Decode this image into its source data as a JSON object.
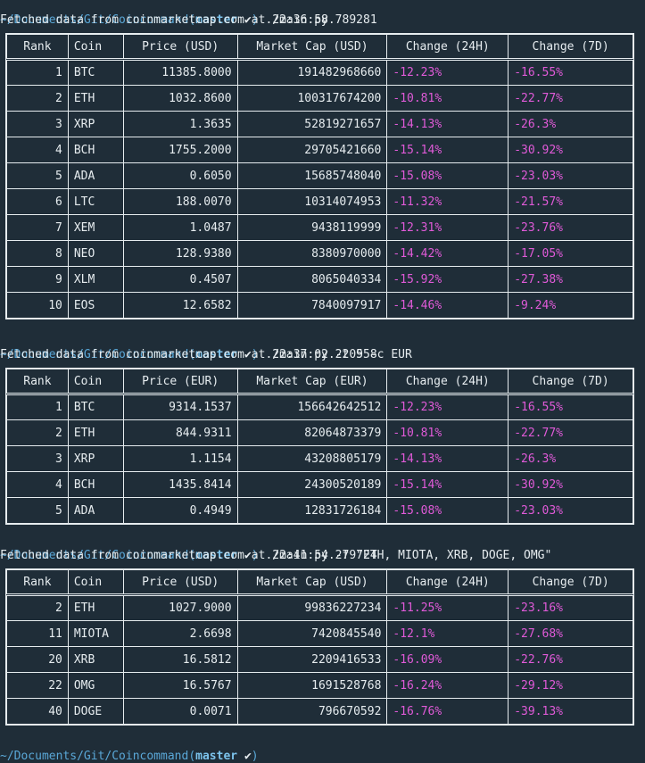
{
  "terminal": {
    "colors": {
      "background": "#1f2d38",
      "path": "#5aa8d8",
      "branch": "#7cc3ec",
      "negative": "#e05ad8",
      "text": "#e6ecef"
    },
    "prompt_path": "~/Documents/Git/Coincommand",
    "prompt_open": "(",
    "branch": "master",
    "check_icon": "✔",
    "prompt_close": ")",
    "sessions": [
      {
        "command": "./main.py",
        "fetched": "Fetched data from coinmarketcap.com at 22:36:58.789281",
        "headers": [
          "Rank",
          "Coin",
          "Price (USD)",
          "Market Cap (USD)",
          "Change (24H)",
          "Change (7D)"
        ],
        "rows": [
          [
            "1",
            "BTC",
            "11385.8000",
            "191482968660",
            "-12.23%",
            "-16.55%"
          ],
          [
            "2",
            "ETH",
            "1032.8600",
            "100317674200",
            "-10.81%",
            "-22.77%"
          ],
          [
            "3",
            "XRP",
            "1.3635",
            "52819271657",
            "-14.13%",
            "-26.3%"
          ],
          [
            "4",
            "BCH",
            "1755.2000",
            "29705421660",
            "-15.14%",
            "-30.92%"
          ],
          [
            "5",
            "ADA",
            "0.6050",
            "15685748040",
            "-15.08%",
            "-23.03%"
          ],
          [
            "6",
            "LTC",
            "188.0070",
            "10314074953",
            "-11.32%",
            "-21.57%"
          ],
          [
            "7",
            "XEM",
            "1.0487",
            "9438119999",
            "-12.31%",
            "-23.76%"
          ],
          [
            "8",
            "NEO",
            "128.9380",
            "8380970000",
            "-14.42%",
            "-17.05%"
          ],
          [
            "9",
            "XLM",
            "0.4507",
            "8065040334",
            "-15.92%",
            "-27.38%"
          ],
          [
            "10",
            "EOS",
            "12.6582",
            "7840097917",
            "-14.46%",
            "-9.24%"
          ]
        ]
      },
      {
        "command": "./main.py -t 5 -c EUR",
        "fetched": "Fetched data from coinmarketcap.com at 22:37:02.220958",
        "headers": [
          "Rank",
          "Coin",
          "Price (EUR)",
          "Market Cap (EUR)",
          "Change (24H)",
          "Change (7D)"
        ],
        "rows": [
          [
            "1",
            "BTC",
            "9314.1537",
            "156642642512",
            "-12.23%",
            "-16.55%"
          ],
          [
            "2",
            "ETH",
            "844.9311",
            "82064873379",
            "-10.81%",
            "-22.77%"
          ],
          [
            "3",
            "XRP",
            "1.1154",
            "43208805179",
            "-14.13%",
            "-26.3%"
          ],
          [
            "4",
            "BCH",
            "1435.8414",
            "24300520189",
            "-15.14%",
            "-30.92%"
          ],
          [
            "5",
            "ADA",
            "0.4949",
            "12831726184",
            "-15.08%",
            "-23.03%"
          ]
        ]
      },
      {
        "command": "./main.py -f \"ETH, MIOTA, XRB, DOGE, OMG\"",
        "fetched": "Fetched data from coinmarketcap.com at 22:41:54.279724",
        "headers": [
          "Rank",
          "Coin",
          "Price (USD)",
          "Market Cap (USD)",
          "Change (24H)",
          "Change (7D)"
        ],
        "rows": [
          [
            "2",
            "ETH",
            "1027.9000",
            "99836227234",
            "-11.25%",
            "-23.16%"
          ],
          [
            "11",
            "MIOTA",
            "2.6698",
            "7420845540",
            "-12.1%",
            "-27.68%"
          ],
          [
            "20",
            "XRB",
            "16.5812",
            "2209416533",
            "-16.09%",
            "-22.76%"
          ],
          [
            "22",
            "OMG",
            "16.5767",
            "1691528768",
            "-16.24%",
            "-29.12%"
          ],
          [
            "40",
            "DOGE",
            "0.0071",
            "796670592",
            "-16.76%",
            "-39.13%"
          ]
        ]
      }
    ]
  }
}
